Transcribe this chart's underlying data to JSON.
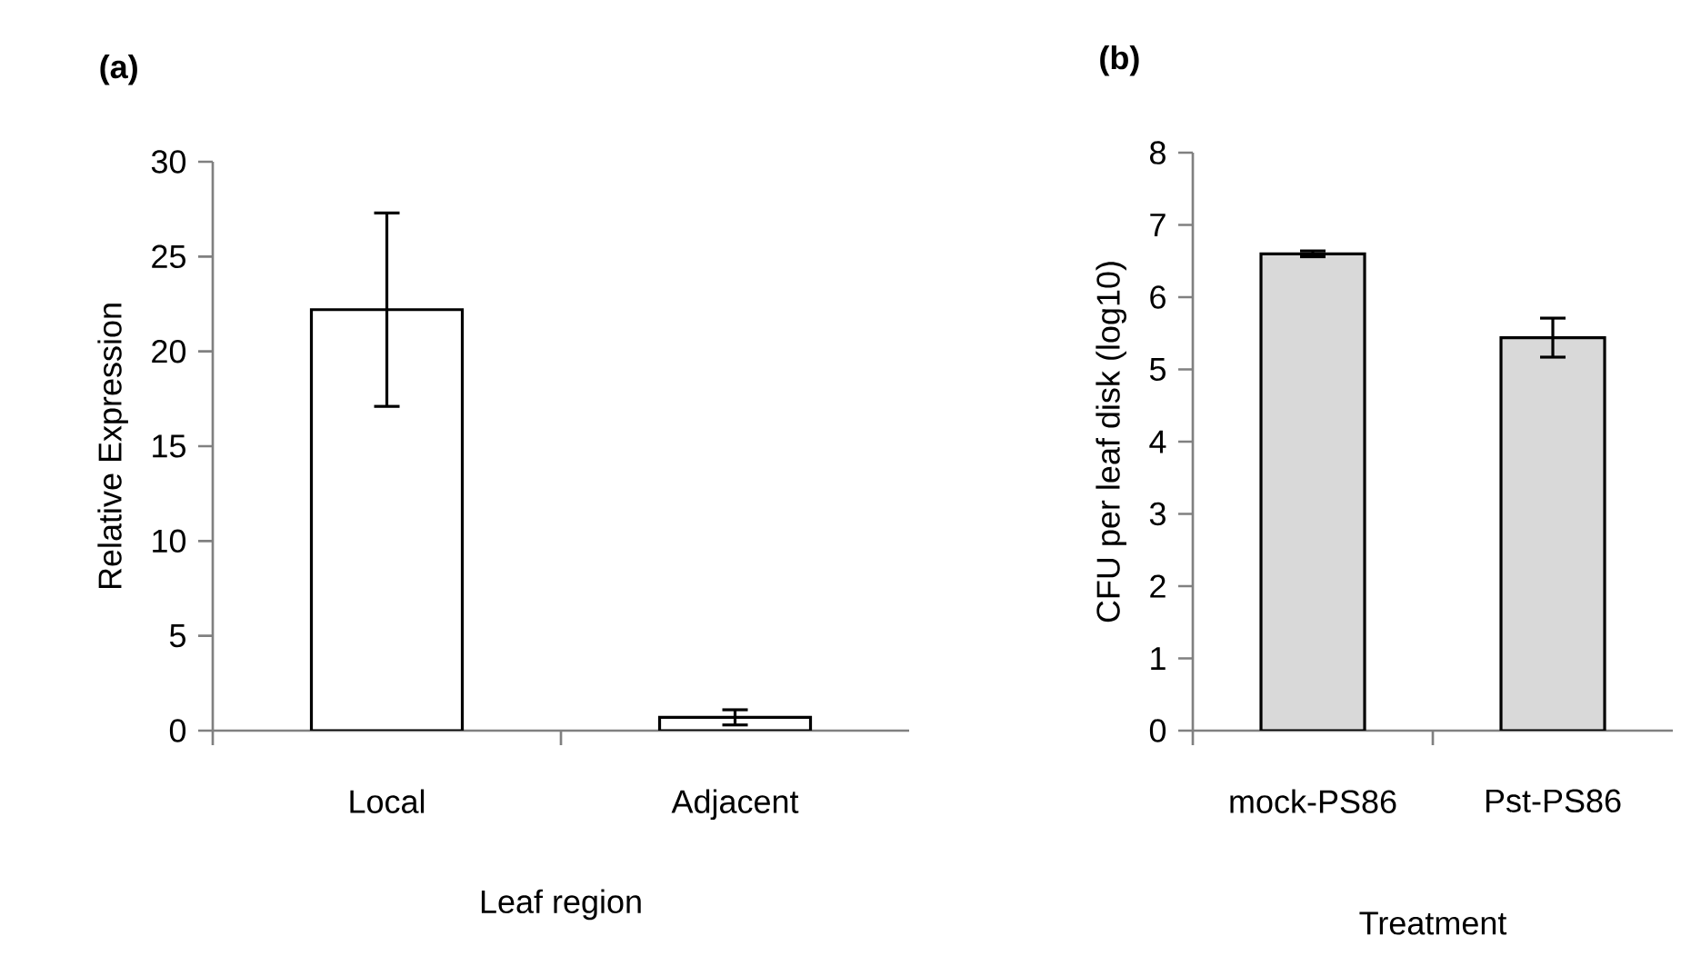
{
  "chart_data": [
    {
      "type": "bar",
      "title": "(a)",
      "categories": [
        "Local",
        "Adjacent"
      ],
      "values": [
        22.2,
        0.7
      ],
      "errors": [
        5.1,
        0.4
      ],
      "color": "#ffffff",
      "xlabel": "Leaf region",
      "ylabel": "Relative Expression",
      "ylim": [
        0,
        30
      ],
      "yticks": [
        0,
        5,
        10,
        15,
        20,
        25,
        30
      ]
    },
    {
      "type": "bar",
      "title": "(b)",
      "categories": [
        "mock-PS86",
        "Pst-PS86"
      ],
      "values": [
        6.6,
        5.44
      ],
      "errors": [
        0.04,
        0.27
      ],
      "color": "#d9d9d9",
      "xlabel": "Treatment",
      "ylabel": "CFU per leaf disk (log10)",
      "ylim": [
        0,
        8
      ],
      "yticks": [
        0,
        1,
        2,
        3,
        4,
        5,
        6,
        7,
        8
      ]
    }
  ]
}
